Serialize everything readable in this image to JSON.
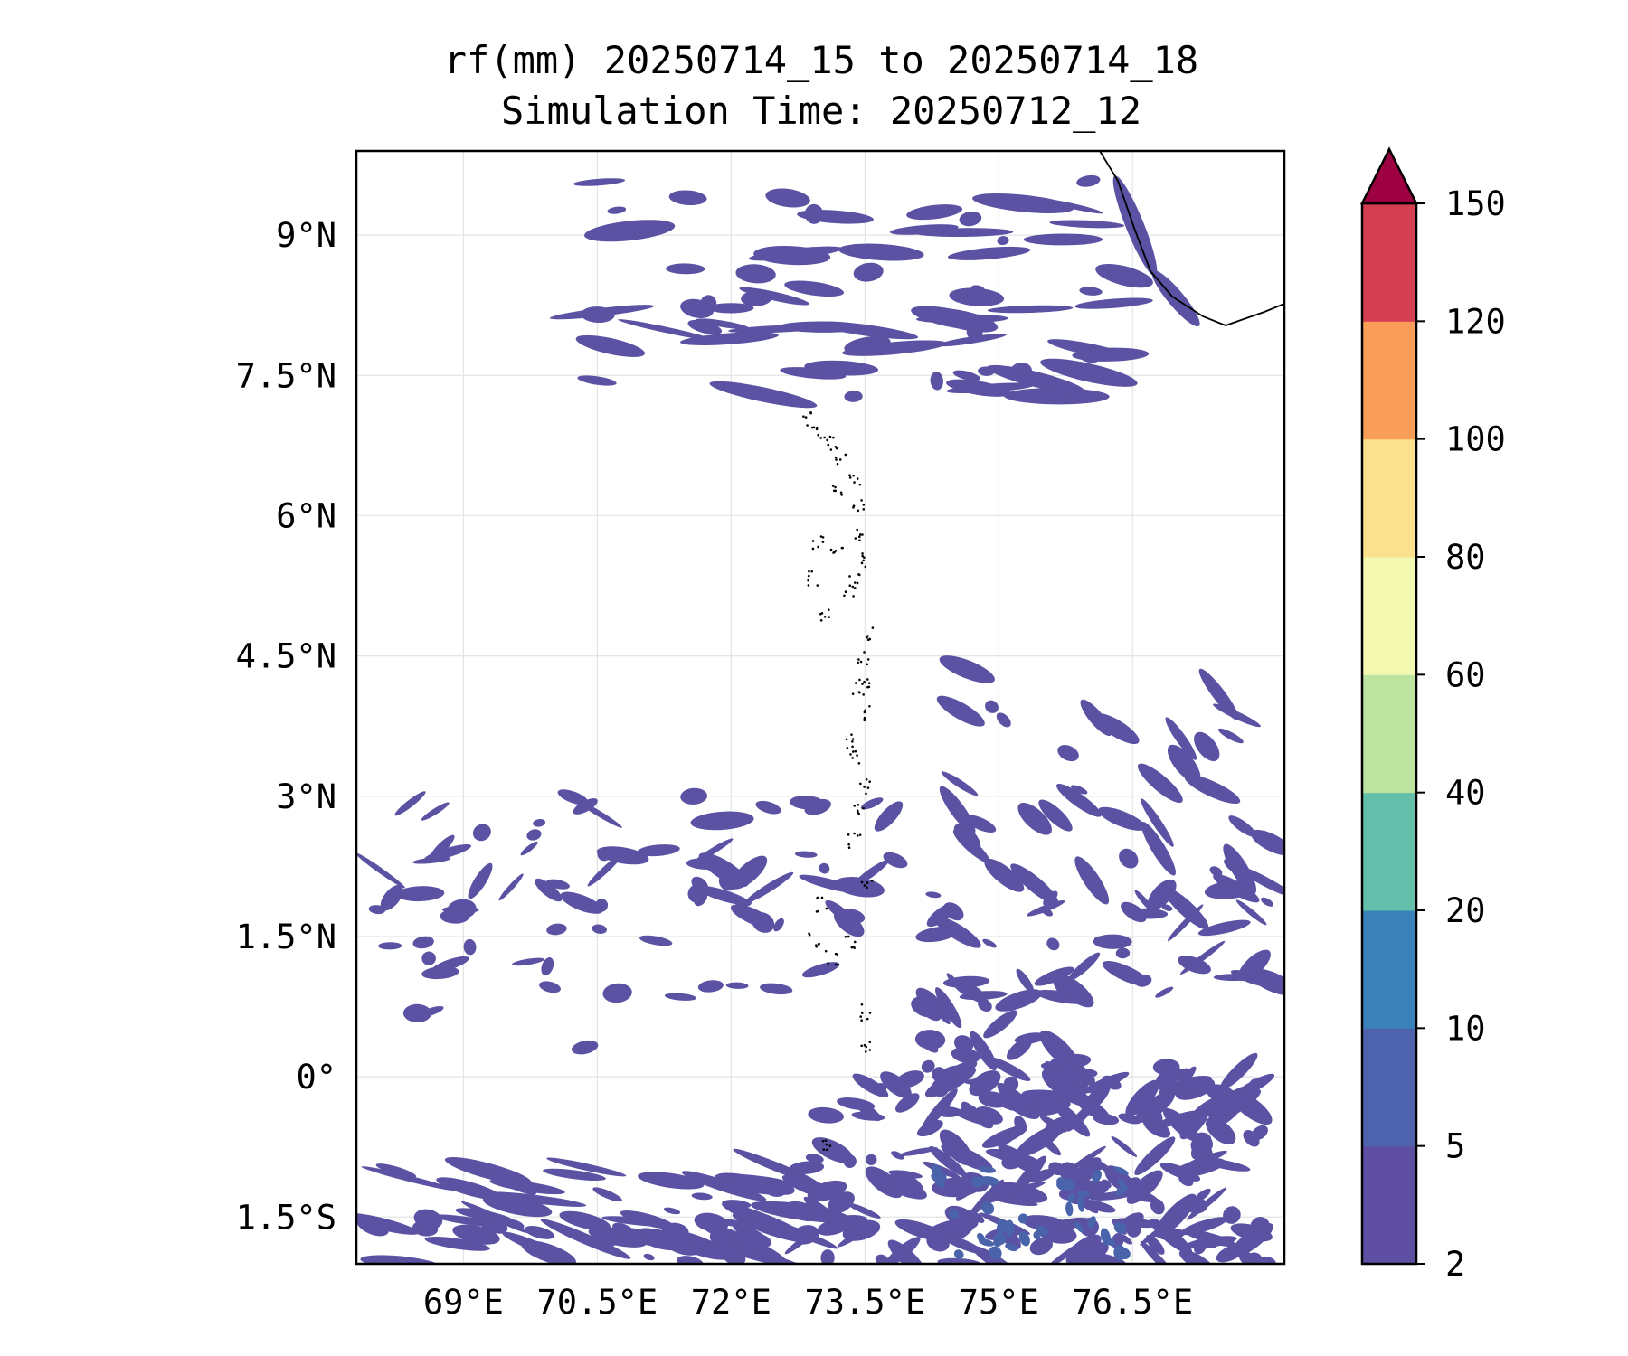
{
  "title": {
    "line1": "rf(mm) 20250714_15 to 20250714_18",
    "line2": "Simulation Time: 20250712_12"
  },
  "map": {
    "lon_range": [
      67.8,
      78.2
    ],
    "lat_range": [
      -2.0,
      9.9
    ],
    "lon_ticks": [
      {
        "value": 69.0,
        "label": "69°E"
      },
      {
        "value": 70.5,
        "label": "70.5°E"
      },
      {
        "value": 72.0,
        "label": "72°E"
      },
      {
        "value": 73.5,
        "label": "73.5°E"
      },
      {
        "value": 75.0,
        "label": "75°E"
      },
      {
        "value": 76.5,
        "label": "76.5°E"
      }
    ],
    "lat_ticks": [
      {
        "value": 9.0,
        "label": "9°N"
      },
      {
        "value": 7.5,
        "label": "7.5°N"
      },
      {
        "value": 6.0,
        "label": "6°N"
      },
      {
        "value": 4.5,
        "label": "4.5°N"
      },
      {
        "value": 3.0,
        "label": "3°N"
      },
      {
        "value": 1.5,
        "label": "1.5°N"
      },
      {
        "value": 0.0,
        "label": "0°"
      },
      {
        "value": -1.5,
        "label": "1.5°S"
      }
    ],
    "gridlines": true,
    "coastline_color": "#000000",
    "rain_color": "#5b52a3",
    "rain_heavy_color": "#4a64ac"
  },
  "colorbar": {
    "levels": [
      "2",
      "5",
      "10",
      "20",
      "40",
      "60",
      "80",
      "100",
      "120",
      "150"
    ],
    "colors": [
      "#5e4fa2",
      "#4e63ad",
      "#3a80b9",
      "#63bfaa",
      "#bce3a0",
      "#f2f8b0",
      "#fbe08d",
      "#f99d59",
      "#d53e50",
      "#9e0142"
    ],
    "extend": "max"
  }
}
